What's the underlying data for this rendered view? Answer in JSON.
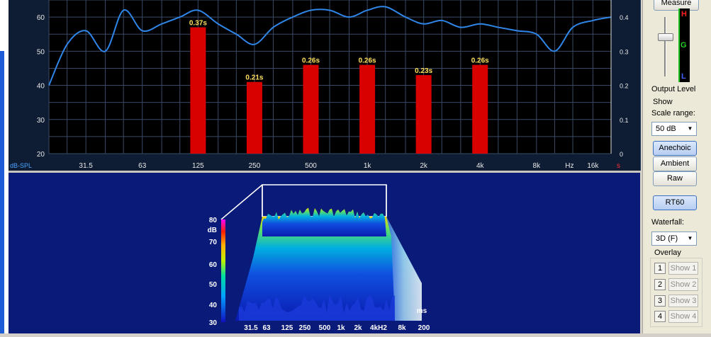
{
  "rt60_chart": {
    "left_ticks": [
      "60",
      "50",
      "40",
      "30",
      "20"
    ],
    "right_ticks": [
      "0.4",
      "0.3",
      "0.2",
      "0.1",
      "0"
    ],
    "x_ticks": [
      "31.5",
      "63",
      "125",
      "250",
      "500",
      "1k",
      "2k",
      "4k",
      "8k",
      "Hz",
      "16k"
    ],
    "left_unit": "dB-SPL",
    "right_unit": "s",
    "bar_color": "#d90000",
    "curve_color": "#2f86e8"
  },
  "chart_data": {
    "type": "bar",
    "categories": [
      "125",
      "250",
      "500",
      "1k",
      "2k",
      "4k"
    ],
    "values": [
      0.37,
      0.21,
      0.26,
      0.26,
      0.23,
      0.26
    ],
    "value_labels": [
      "0.37s",
      "0.21s",
      "0.26s",
      "0.26s",
      "0.23s",
      "0.26s"
    ],
    "ylim_right": [
      0,
      0.45
    ],
    "ylim_left": [
      20,
      65
    ],
    "spl_curve": {
      "x": [
        "20",
        "25",
        "31.5",
        "40",
        "50",
        "63",
        "80",
        "100",
        "125",
        "160",
        "200",
        "250",
        "315",
        "400",
        "500",
        "630",
        "800",
        "1k",
        "1.25k",
        "1.6k",
        "2k",
        "2.5k",
        "3.15k",
        "4k",
        "5k",
        "6.3k",
        "8k",
        "10k",
        "12.5k",
        "16k",
        "20k"
      ],
      "y": [
        40,
        52,
        56,
        50,
        62,
        56,
        58,
        60,
        62,
        58,
        55,
        52,
        57,
        60,
        62,
        62,
        60,
        62,
        63,
        60,
        58,
        59,
        57,
        58,
        57,
        56,
        55,
        50,
        57,
        59,
        60
      ]
    }
  },
  "waterfall": {
    "z_ticks": [
      "80",
      "dB",
      "70",
      "60",
      "50",
      "40",
      "30"
    ],
    "x_ticks": [
      "31.5",
      "63",
      "125",
      "250",
      "500",
      "1k",
      "2k",
      "4kH2",
      "8k"
    ],
    "time_label": "ms",
    "time_end": "200"
  },
  "sidebar": {
    "measure": "Measure",
    "meter": {
      "h": "H",
      "g": "G",
      "l": "L"
    },
    "output_level": "Output Level",
    "show": "Show",
    "scale_range": "Scale range:",
    "scale_value": "50 dB",
    "anechoic": "Anechoic",
    "ambient": "Ambient",
    "raw": "Raw",
    "rt60": "RT60",
    "waterfall_label": "Waterfall:",
    "waterfall_value": "3D (F)",
    "overlay": "Overlay",
    "overlays": [
      {
        "num": "1",
        "label": "Show 1"
      },
      {
        "num": "2",
        "label": "Show 2"
      },
      {
        "num": "3",
        "label": "Show 3"
      },
      {
        "num": "4",
        "label": "Show 4"
      }
    ]
  }
}
